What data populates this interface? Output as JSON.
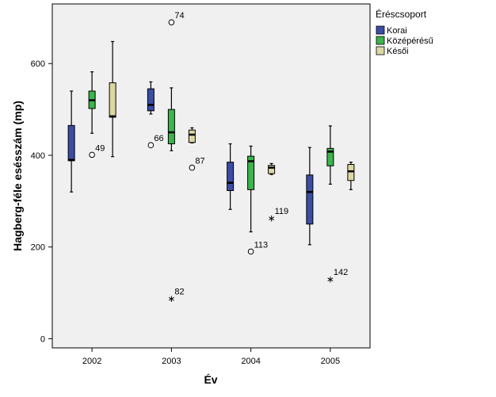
{
  "chart_data": {
    "type": "boxplot",
    "xlabel": "Év",
    "ylabel": "Hagberg-féle esésszám (mp)",
    "ylim": [
      -20,
      730
    ],
    "yticks": [
      0,
      200,
      400,
      600
    ],
    "categories": [
      "2002",
      "2003",
      "2004",
      "2005"
    ],
    "legend": {
      "title": "Éréscsoport",
      "placement": "top-right-outside"
    },
    "series": [
      {
        "name": "Korai",
        "color": "#3b4da4",
        "boxes": [
          {
            "category": "2002",
            "min": 320,
            "q1": 388,
            "median": 390,
            "q3": 465,
            "max": 540,
            "outliers": []
          },
          {
            "category": "2003",
            "min": 490,
            "q1": 497,
            "median": 510,
            "q3": 545,
            "max": 560,
            "outliers": [
              {
                "value": 422,
                "marker": "circle",
                "label": "66"
              }
            ]
          },
          {
            "category": "2004",
            "min": 282,
            "q1": 323,
            "median": 340,
            "q3": 385,
            "max": 425,
            "outliers": []
          },
          {
            "category": "2005",
            "min": 205,
            "q1": 250,
            "median": 320,
            "q3": 357,
            "max": 417,
            "outliers": []
          }
        ]
      },
      {
        "name": "Középérésű",
        "color": "#3cb54a",
        "boxes": [
          {
            "category": "2002",
            "min": 448,
            "q1": 502,
            "median": 520,
            "q3": 540,
            "max": 582,
            "outliers": [
              {
                "value": 401,
                "marker": "circle",
                "label": "49"
              }
            ]
          },
          {
            "category": "2003",
            "min": 410,
            "q1": 425,
            "median": 450,
            "q3": 500,
            "max": 547,
            "outliers": [
              {
                "value": 690,
                "marker": "circle",
                "label": "74"
              },
              {
                "value": 88,
                "marker": "star",
                "label": "82"
              }
            ]
          },
          {
            "category": "2004",
            "min": 233,
            "q1": 325,
            "median": 387,
            "q3": 398,
            "max": 420,
            "outliers": [
              {
                "value": 190,
                "marker": "circle",
                "label": "113"
              }
            ]
          },
          {
            "category": "2005",
            "min": 337,
            "q1": 377,
            "median": 408,
            "q3": 415,
            "max": 464,
            "outliers": [
              {
                "value": 130,
                "marker": "star",
                "label": "142"
              }
            ]
          }
        ]
      },
      {
        "name": "Késői",
        "color": "#ddd7a3",
        "boxes": [
          {
            "category": "2002",
            "min": 397,
            "q1": 483,
            "median": 485,
            "q3": 558,
            "max": 648,
            "outliers": []
          },
          {
            "category": "2003",
            "min": 427,
            "q1": 428,
            "median": 445,
            "q3": 455,
            "max": 460,
            "outliers": [
              {
                "value": 373,
                "marker": "circle",
                "label": "87"
              }
            ]
          },
          {
            "category": "2004",
            "min": 358,
            "q1": 360,
            "median": 373,
            "q3": 378,
            "max": 382,
            "outliers": [
              {
                "value": 263,
                "marker": "star",
                "label": "119"
              }
            ]
          },
          {
            "category": "2005",
            "min": 325,
            "q1": 345,
            "median": 365,
            "q3": 380,
            "max": 385,
            "outliers": []
          }
        ]
      }
    ]
  }
}
